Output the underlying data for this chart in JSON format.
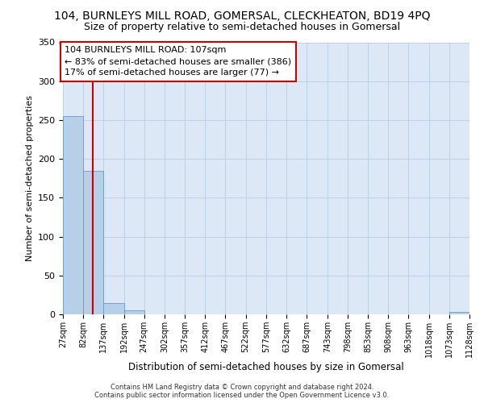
{
  "title": "104, BURNLEYS MILL ROAD, GOMERSAL, CLECKHEATON, BD19 4PQ",
  "subtitle": "Size of property relative to semi-detached houses in Gomersal",
  "xlabel": "Distribution of semi-detached houses by size in Gomersal",
  "ylabel": "Number of semi-detached properties",
  "bin_edges": [
    27,
    82,
    137,
    192,
    247,
    302,
    357,
    412,
    467,
    522,
    577,
    632,
    687,
    743,
    798,
    853,
    908,
    963,
    1018,
    1073,
    1128
  ],
  "bar_heights": [
    255,
    185,
    15,
    5,
    0,
    0,
    0,
    0,
    0,
    0,
    0,
    0,
    0,
    0,
    0,
    0,
    0,
    0,
    0,
    3
  ],
  "bar_color": "#b8cfe8",
  "bar_edge_color": "#6699cc",
  "red_line_x": 107,
  "annotation_text": "104 BURNLEYS MILL ROAD: 107sqm\n← 83% of semi-detached houses are smaller (386)\n17% of semi-detached houses are larger (77) →",
  "annotation_box_color": "#ffffff",
  "annotation_border_color": "#cc0000",
  "ylim": [
    0,
    350
  ],
  "yticks": [
    0,
    50,
    100,
    150,
    200,
    250,
    300,
    350
  ],
  "footer_line1": "Contains HM Land Registry data © Crown copyright and database right 2024.",
  "footer_line2": "Contains public sector information licensed under the Open Government Licence v3.0.",
  "bg_color": "#ffffff",
  "plot_bg_color": "#dce8f5",
  "grid_color": "#bdd0e8",
  "title_fontsize": 10,
  "subtitle_fontsize": 9,
  "annotation_fontsize": 8
}
